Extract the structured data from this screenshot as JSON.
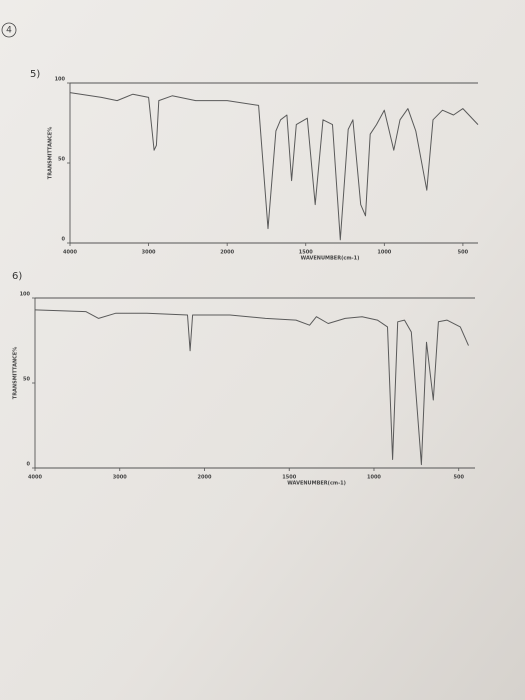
{
  "page_number": "4",
  "chart_data": [
    {
      "type": "line",
      "label": "5)",
      "xlabel": "WAVENUMBER(cm-1)",
      "ylabel": "TRANSMITTANCE%",
      "color": "#5a5a5a",
      "x": [
        4000,
        3600,
        3400,
        3200,
        3000,
        2930,
        2900,
        2870,
        2700,
        2400,
        2000,
        1800,
        1740,
        1690,
        1660,
        1620,
        1590,
        1560,
        1490,
        1440,
        1390,
        1330,
        1280,
        1230,
        1200,
        1150,
        1120,
        1090,
        1050,
        1000,
        940,
        900,
        850,
        800,
        730,
        690,
        630,
        560,
        500,
        400
      ],
      "values": [
        94,
        91,
        89,
        93,
        91,
        58,
        61,
        89,
        92,
        89,
        89,
        86,
        9,
        70,
        77,
        80,
        39,
        74,
        78,
        24,
        77,
        74,
        2,
        71,
        77,
        24,
        17,
        68,
        74,
        83,
        58,
        77,
        84,
        70,
        33,
        77,
        83,
        80,
        84,
        74
      ],
      "xlim": [
        4000,
        400
      ],
      "xticks": [
        4000,
        3000,
        2000,
        1500,
        1000,
        500
      ],
      "ylim": [
        0,
        100
      ],
      "yticks": [
        0,
        50,
        100
      ]
    },
    {
      "type": "line",
      "label": "6)",
      "xlabel": "WAVENUMBER(cm-1)",
      "ylabel": "TRANSMITTANCE%",
      "color": "#5a5a5a",
      "x": [
        4000,
        3400,
        3250,
        3050,
        2680,
        2200,
        2170,
        2140,
        1850,
        1640,
        1460,
        1380,
        1340,
        1270,
        1170,
        1070,
        980,
        920,
        890,
        860,
        820,
        780,
        720,
        690,
        650,
        620,
        570,
        490,
        440
      ],
      "values": [
        93,
        92,
        88,
        91,
        91,
        90,
        69,
        90,
        90,
        88,
        87,
        84,
        89,
        85,
        88,
        89,
        87,
        83,
        5,
        86,
        87,
        80,
        2,
        74,
        40,
        86,
        87,
        83,
        72
      ],
      "xlim": [
        4000,
        400
      ],
      "xticks": [
        4000,
        3000,
        2000,
        1500,
        1000,
        500
      ],
      "ylim": [
        0,
        100
      ],
      "yticks": [
        0,
        50,
        100
      ]
    }
  ]
}
